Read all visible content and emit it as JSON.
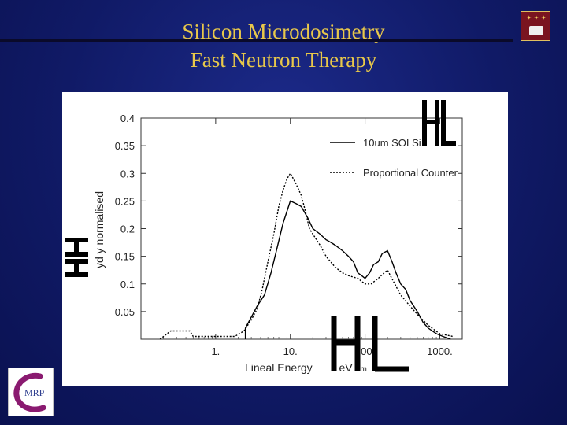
{
  "slide": {
    "title": "Silicon Microdosimetry",
    "subtitle": "Fast Neutron Therapy",
    "colors": {
      "background": "#101a66",
      "title": "#e8c84a",
      "chart_bg": "#ffffff"
    },
    "logo": {
      "letters": "MRP"
    }
  },
  "chart_data": {
    "type": "line",
    "xlabel": "Lineal Energy",
    "xlabel_unit_fragment": "eV",
    "xlabel_unit_sub": "m",
    "ylabel": "yd y normalised",
    "xscale": "log",
    "xlim": [
      0.1,
      2000
    ],
    "ylim": [
      0,
      0.4
    ],
    "xticks": [
      1,
      10,
      100,
      1000
    ],
    "xtick_labels": [
      "1.",
      "10.",
      "100.",
      "1000."
    ],
    "yticks": [
      0.05,
      0.1,
      0.15,
      0.2,
      0.25,
      0.3,
      0.35,
      0.4
    ],
    "ytick_labels": [
      "0.05",
      "0.1",
      "0.15",
      "0.2",
      "0.25",
      "0.3",
      "0.35",
      "0.4"
    ],
    "grid": false,
    "legend_position": "top-right",
    "series": [
      {
        "name": "10um SOI Si",
        "style": "solid",
        "color": "#000000",
        "x": [
          2.5,
          2.5,
          3,
          3.6,
          4.5,
          5.5,
          6.5,
          8,
          10,
          12,
          14,
          17,
          20,
          25,
          30,
          35,
          40,
          50,
          60,
          70,
          80,
          90,
          100,
          115,
          130,
          150,
          170,
          200,
          230,
          260,
          300,
          350,
          400,
          500,
          600,
          700,
          900,
          1100,
          1400
        ],
        "y": [
          0.0,
          0.02,
          0.04,
          0.06,
          0.08,
          0.12,
          0.16,
          0.21,
          0.25,
          0.245,
          0.24,
          0.22,
          0.2,
          0.19,
          0.18,
          0.175,
          0.17,
          0.16,
          0.15,
          0.14,
          0.12,
          0.115,
          0.11,
          0.12,
          0.135,
          0.14,
          0.155,
          0.16,
          0.14,
          0.12,
          0.1,
          0.09,
          0.07,
          0.05,
          0.03,
          0.02,
          0.01,
          0.005,
          0.0
        ]
      },
      {
        "name": "Proportional Counter",
        "style": "dotted",
        "color": "#000000",
        "x": [
          0.18,
          0.25,
          0.3,
          0.35,
          0.45,
          0.5,
          0.8,
          1.2,
          1.8,
          2.4,
          3,
          3.6,
          4.2,
          5,
          6,
          7,
          8,
          9,
          10,
          11,
          12,
          14,
          16,
          18,
          20,
          25,
          30,
          40,
          50,
          60,
          80,
          100,
          120,
          150,
          180,
          200,
          250,
          300,
          400,
          500,
          700,
          1000,
          1500
        ],
        "y": [
          0.0,
          0.015,
          0.015,
          0.015,
          0.015,
          0.005,
          0.005,
          0.005,
          0.005,
          0.015,
          0.035,
          0.055,
          0.09,
          0.14,
          0.19,
          0.24,
          0.27,
          0.29,
          0.3,
          0.29,
          0.28,
          0.26,
          0.23,
          0.2,
          0.19,
          0.17,
          0.15,
          0.13,
          0.12,
          0.115,
          0.11,
          0.1,
          0.1,
          0.11,
          0.12,
          0.125,
          0.1,
          0.08,
          0.06,
          0.045,
          0.025,
          0.01,
          0.005
        ]
      }
    ]
  }
}
